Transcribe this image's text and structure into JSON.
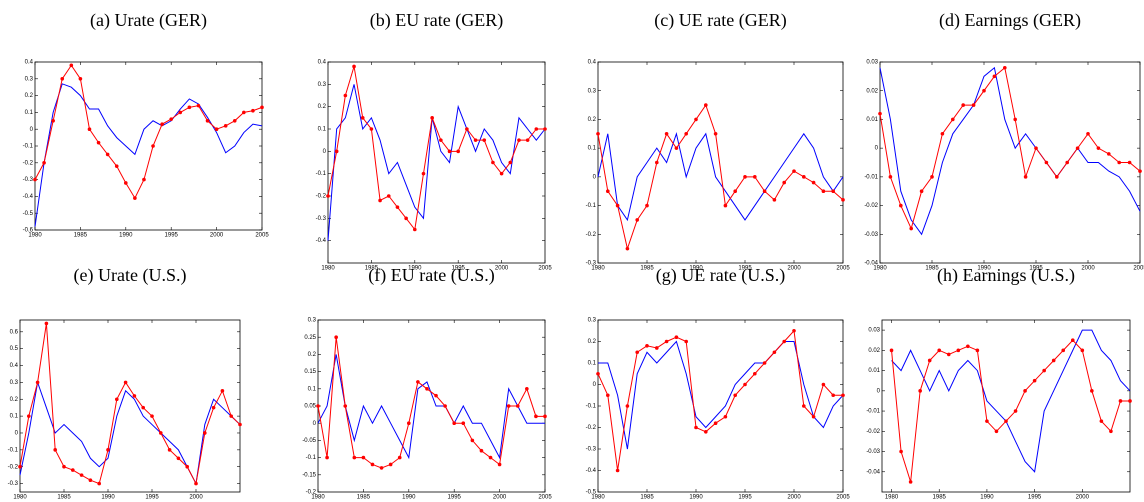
{
  "chart_data": [
    {
      "type": "line",
      "title": "(a) Urate (GER)",
      "x": [
        1980,
        1981,
        1982,
        1983,
        1984,
        1985,
        1986,
        1987,
        1988,
        1989,
        1990,
        1991,
        1992,
        1993,
        1994,
        1995,
        1996,
        1997,
        1998,
        1999,
        2000,
        2001,
        2002,
        2003,
        2004,
        2005
      ],
      "series": [
        {
          "color": "#0000ff",
          "markers": false,
          "values": [
            -0.58,
            -0.2,
            0.1,
            0.27,
            0.25,
            0.2,
            0.12,
            0.12,
            0.02,
            -0.05,
            -0.1,
            -0.15,
            0.0,
            0.05,
            0.02,
            0.05,
            0.12,
            0.18,
            0.15,
            0.07,
            -0.02,
            -0.14,
            -0.1,
            -0.02,
            0.03,
            0.02
          ]
        },
        {
          "color": "#ff0000",
          "markers": true,
          "values": [
            -0.3,
            -0.2,
            0.05,
            0.3,
            0.38,
            0.3,
            0.0,
            -0.08,
            -0.15,
            -0.22,
            -0.32,
            -0.41,
            -0.3,
            -0.1,
            0.03,
            0.06,
            0.1,
            0.13,
            0.14,
            0.05,
            0.0,
            0.02,
            0.05,
            0.1,
            0.11,
            0.13
          ]
        }
      ],
      "xlim": [
        1980,
        2005
      ],
      "xticks": [
        1980,
        1985,
        1990,
        1995,
        2000,
        2005
      ],
      "ylim": [
        -0.6,
        0.4
      ],
      "yticks": [
        -0.6,
        -0.5,
        -0.4,
        -0.3,
        -0.2,
        -0.1,
        0,
        0.1,
        0.2,
        0.3,
        0.4
      ]
    },
    {
      "type": "line",
      "title": "(b) EU rate (GER)",
      "x": [
        1980,
        1981,
        1982,
        1983,
        1984,
        1985,
        1986,
        1987,
        1988,
        1989,
        1990,
        1991,
        1992,
        1993,
        1994,
        1995,
        1996,
        1997,
        1998,
        1999,
        2000,
        2001,
        2002,
        2003,
        2004,
        2005
      ],
      "series": [
        {
          "color": "#0000ff",
          "markers": false,
          "values": [
            -0.4,
            0.1,
            0.15,
            0.3,
            0.1,
            0.15,
            0.05,
            -0.1,
            -0.05,
            -0.15,
            -0.25,
            -0.3,
            0.15,
            0.0,
            -0.05,
            0.2,
            0.1,
            0.0,
            0.1,
            0.05,
            -0.05,
            -0.1,
            0.15,
            0.1,
            0.05,
            0.1
          ]
        },
        {
          "color": "#ff0000",
          "markers": true,
          "values": [
            -0.2,
            0.0,
            0.25,
            0.38,
            0.15,
            0.1,
            -0.22,
            -0.2,
            -0.25,
            -0.3,
            -0.35,
            -0.1,
            0.15,
            0.05,
            0.0,
            0.0,
            0.1,
            0.05,
            0.05,
            -0.05,
            -0.1,
            -0.05,
            0.05,
            0.05,
            0.1,
            0.1
          ]
        }
      ],
      "xlim": [
        1980,
        2005
      ],
      "xticks": [
        1980,
        1985,
        1990,
        1995,
        2000,
        2005
      ],
      "ylim": [
        -0.5,
        0.4
      ],
      "yticks": [
        -0.4,
        -0.3,
        -0.2,
        -0.1,
        0,
        0.1,
        0.2,
        0.3,
        0.4
      ]
    },
    {
      "type": "line",
      "title": "(c) UE rate (GER)",
      "x": [
        1980,
        1981,
        1982,
        1983,
        1984,
        1985,
        1986,
        1987,
        1988,
        1989,
        1990,
        1991,
        1992,
        1993,
        1994,
        1995,
        1996,
        1997,
        1998,
        1999,
        2000,
        2001,
        2002,
        2003,
        2004,
        2005
      ],
      "series": [
        {
          "color": "#0000ff",
          "markers": false,
          "values": [
            0.0,
            0.15,
            -0.1,
            -0.15,
            0.0,
            0.05,
            0.1,
            0.05,
            0.15,
            0.0,
            0.1,
            0.15,
            0.0,
            -0.05,
            -0.1,
            -0.15,
            -0.1,
            -0.05,
            0.0,
            0.05,
            0.1,
            0.15,
            0.1,
            0.0,
            -0.05,
            0.0
          ]
        },
        {
          "color": "#ff0000",
          "markers": true,
          "values": [
            0.15,
            -0.05,
            -0.1,
            -0.25,
            -0.15,
            -0.1,
            0.05,
            0.15,
            0.1,
            0.15,
            0.2,
            0.25,
            0.15,
            -0.1,
            -0.05,
            0.0,
            0.0,
            -0.05,
            -0.08,
            -0.02,
            0.02,
            0.0,
            -0.02,
            -0.05,
            -0.05,
            -0.08
          ]
        }
      ],
      "xlim": [
        1980,
        2005
      ],
      "xticks": [
        1980,
        1985,
        1990,
        1995,
        2000,
        2005
      ],
      "ylim": [
        -0.3,
        0.4
      ],
      "yticks": [
        -0.3,
        -0.2,
        -0.1,
        0,
        0.1,
        0.2,
        0.3,
        0.4
      ]
    },
    {
      "type": "line",
      "title": "(d) Earnings (GER)",
      "x": [
        1980,
        1981,
        1982,
        1983,
        1984,
        1985,
        1986,
        1987,
        1988,
        1989,
        1990,
        1991,
        1992,
        1993,
        1994,
        1995,
        1996,
        1997,
        1998,
        1999,
        2000,
        2001,
        2002,
        2003,
        2004,
        2005
      ],
      "series": [
        {
          "color": "#0000ff",
          "markers": false,
          "values": [
            0.028,
            0.01,
            -0.015,
            -0.025,
            -0.03,
            -0.02,
            -0.005,
            0.005,
            0.01,
            0.015,
            0.025,
            0.028,
            0.01,
            0.0,
            0.005,
            0.0,
            -0.005,
            -0.01,
            -0.005,
            0.0,
            -0.005,
            -0.005,
            -0.008,
            -0.01,
            -0.015,
            -0.022
          ]
        },
        {
          "color": "#ff0000",
          "markers": true,
          "values": [
            0.012,
            -0.01,
            -0.02,
            -0.028,
            -0.015,
            -0.01,
            0.005,
            0.01,
            0.015,
            0.015,
            0.02,
            0.025,
            0.028,
            0.01,
            -0.01,
            0.0,
            -0.005,
            -0.01,
            -0.005,
            0.0,
            0.005,
            0.0,
            -0.002,
            -0.005,
            -0.005,
            -0.008
          ]
        }
      ],
      "xlim": [
        1980,
        2005
      ],
      "xticks": [
        1980,
        1985,
        1990,
        1995,
        2000,
        2005
      ],
      "ylim": [
        -0.04,
        0.03
      ],
      "yticks": [
        -0.04,
        -0.03,
        -0.02,
        -0.01,
        0,
        0.01,
        0.02,
        0.03
      ]
    },
    {
      "type": "line",
      "title": "(e) Urate (U.S.)",
      "x": [
        1980,
        1981,
        1982,
        1983,
        1984,
        1985,
        1986,
        1987,
        1988,
        1989,
        1990,
        1991,
        1992,
        1993,
        1994,
        1995,
        1996,
        1997,
        1998,
        1999,
        2000,
        2001,
        2002,
        2003,
        2004,
        2005
      ],
      "series": [
        {
          "color": "#0000ff",
          "markers": false,
          "values": [
            -0.25,
            0.0,
            0.3,
            0.15,
            0.0,
            0.05,
            0.0,
            -0.05,
            -0.15,
            -0.2,
            -0.15,
            0.1,
            0.25,
            0.2,
            0.1,
            0.05,
            0.0,
            -0.05,
            -0.1,
            -0.2,
            -0.3,
            0.05,
            0.2,
            0.15,
            0.1,
            0.05
          ]
        },
        {
          "color": "#ff0000",
          "markers": true,
          "values": [
            -0.2,
            0.1,
            0.3,
            0.65,
            -0.1,
            -0.2,
            -0.22,
            -0.25,
            -0.28,
            -0.3,
            -0.1,
            0.2,
            0.3,
            0.22,
            0.15,
            0.1,
            0.0,
            -0.1,
            -0.15,
            -0.2,
            -0.3,
            0.0,
            0.15,
            0.25,
            0.1,
            0.05
          ]
        }
      ],
      "xlim": [
        1980,
        2005
      ],
      "xticks": [
        1980,
        1985,
        1990,
        1995,
        2000
      ],
      "ylim": [
        -0.35,
        0.67
      ],
      "yticks": [
        -0.3,
        -0.2,
        -0.1,
        0,
        0.1,
        0.2,
        0.3,
        0.4,
        0.5,
        0.6
      ]
    },
    {
      "type": "line",
      "title": "(f) EU rate (U.S.)",
      "x": [
        1980,
        1981,
        1982,
        1983,
        1984,
        1985,
        1986,
        1987,
        1988,
        1989,
        1990,
        1991,
        1992,
        1993,
        1994,
        1995,
        1996,
        1997,
        1998,
        1999,
        2000,
        2001,
        2002,
        2003,
        2004,
        2005
      ],
      "series": [
        {
          "color": "#0000ff",
          "markers": false,
          "values": [
            0.0,
            0.05,
            0.2,
            0.05,
            -0.05,
            0.05,
            0.0,
            0.05,
            0.0,
            -0.05,
            -0.1,
            0.1,
            0.12,
            0.05,
            0.05,
            0.0,
            0.05,
            0.0,
            0.0,
            -0.05,
            -0.1,
            0.1,
            0.05,
            0.0,
            0.0,
            0.0
          ]
        },
        {
          "color": "#ff0000",
          "markers": true,
          "values": [
            0.05,
            -0.1,
            0.25,
            0.05,
            -0.1,
            -0.1,
            -0.12,
            -0.13,
            -0.12,
            -0.1,
            0.0,
            0.12,
            0.1,
            0.08,
            0.05,
            0.0,
            0.0,
            -0.05,
            -0.08,
            -0.1,
            -0.12,
            0.05,
            0.05,
            0.1,
            0.02,
            0.02
          ]
        }
      ],
      "xlim": [
        1980,
        2005
      ],
      "xticks": [
        1980,
        1985,
        1990,
        1995,
        2000,
        2005
      ],
      "ylim": [
        -0.2,
        0.3
      ],
      "yticks": [
        -0.2,
        -0.15,
        -0.1,
        -0.05,
        0,
        0.05,
        0.1,
        0.15,
        0.2,
        0.25,
        0.3
      ]
    },
    {
      "type": "line",
      "title": "(g) UE rate (U.S.)",
      "x": [
        1980,
        1981,
        1982,
        1983,
        1984,
        1985,
        1986,
        1987,
        1988,
        1989,
        1990,
        1991,
        1992,
        1993,
        1994,
        1995,
        1996,
        1997,
        1998,
        1999,
        2000,
        2001,
        2002,
        2003,
        2004,
        2005
      ],
      "series": [
        {
          "color": "#0000ff",
          "markers": false,
          "values": [
            0.1,
            0.1,
            -0.05,
            -0.3,
            0.05,
            0.15,
            0.1,
            0.15,
            0.2,
            0.05,
            -0.15,
            -0.2,
            -0.15,
            -0.1,
            0.0,
            0.05,
            0.1,
            0.1,
            0.15,
            0.2,
            0.2,
            0.0,
            -0.15,
            -0.2,
            -0.1,
            -0.05
          ]
        },
        {
          "color": "#ff0000",
          "markers": true,
          "values": [
            0.05,
            -0.05,
            -0.4,
            -0.1,
            0.15,
            0.18,
            0.17,
            0.2,
            0.22,
            0.2,
            -0.2,
            -0.22,
            -0.18,
            -0.15,
            -0.05,
            0.0,
            0.05,
            0.1,
            0.15,
            0.2,
            0.25,
            -0.1,
            -0.15,
            0.0,
            -0.05,
            -0.05
          ]
        }
      ],
      "xlim": [
        1980,
        2005
      ],
      "xticks": [
        1980,
        1985,
        1990,
        1995,
        2000,
        2005
      ],
      "ylim": [
        -0.5,
        0.3
      ],
      "yticks": [
        -0.5,
        -0.4,
        -0.3,
        -0.2,
        -0.1,
        0,
        0.1,
        0.2,
        0.3
      ]
    },
    {
      "type": "line",
      "title": "(h) Earnings (U.S.)",
      "x": [
        1980,
        1981,
        1982,
        1983,
        1984,
        1985,
        1986,
        1987,
        1988,
        1989,
        1990,
        1991,
        1992,
        1993,
        1994,
        1995,
        1996,
        1997,
        1998,
        1999,
        2000,
        2001,
        2002,
        2003,
        2004,
        2005
      ],
      "series": [
        {
          "color": "#0000ff",
          "markers": false,
          "values": [
            0.015,
            0.01,
            0.02,
            0.01,
            0.0,
            0.01,
            0.0,
            0.01,
            0.015,
            0.01,
            -0.005,
            -0.01,
            -0.015,
            -0.025,
            -0.035,
            -0.04,
            -0.01,
            0.0,
            0.01,
            0.02,
            0.03,
            0.03,
            0.02,
            0.015,
            0.005,
            0.0
          ]
        },
        {
          "color": "#ff0000",
          "markers": true,
          "values": [
            0.02,
            -0.03,
            -0.045,
            0.0,
            0.015,
            0.02,
            0.018,
            0.02,
            0.022,
            0.02,
            -0.015,
            -0.02,
            -0.015,
            -0.01,
            0.0,
            0.005,
            0.01,
            0.015,
            0.02,
            0.025,
            0.02,
            0.0,
            -0.015,
            -0.02,
            -0.005,
            -0.005
          ]
        }
      ],
      "xlim": [
        1979,
        2005
      ],
      "xticks": [
        1980,
        1985,
        1990,
        1995,
        2000
      ],
      "ylim": [
        -0.05,
        0.035
      ],
      "yticks": [
        -0.04,
        -0.03,
        -0.02,
        -0.01,
        0,
        0.01,
        0.02,
        0.03
      ]
    }
  ]
}
